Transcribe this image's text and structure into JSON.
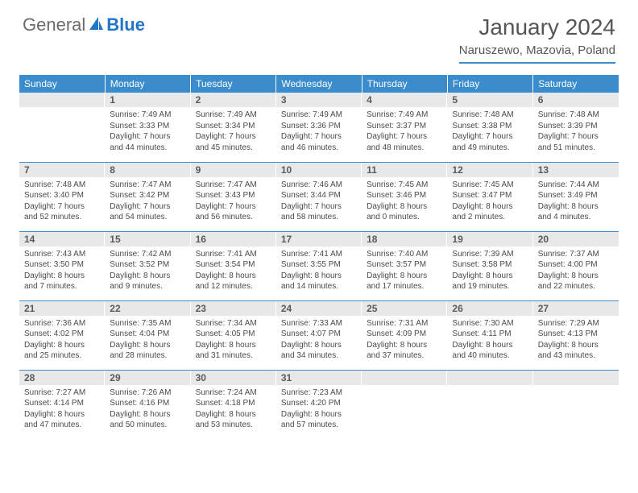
{
  "logo": {
    "text1": "General",
    "text2": "Blue"
  },
  "colors": {
    "header_bg": "#3a8ccc",
    "daynum_bg": "#e8e8e8",
    "text": "#4a4a4a",
    "logo_gray": "#6b6b6b",
    "logo_blue": "#2176c7",
    "border": "#3a8ccc"
  },
  "title": "January 2024",
  "location": "Naruszewo, Mazovia, Poland",
  "weekdays": [
    "Sunday",
    "Monday",
    "Tuesday",
    "Wednesday",
    "Thursday",
    "Friday",
    "Saturday"
  ],
  "weeks": [
    [
      {
        "n": "",
        "lines": []
      },
      {
        "n": "1",
        "lines": [
          "Sunrise: 7:49 AM",
          "Sunset: 3:33 PM",
          "Daylight: 7 hours",
          "and 44 minutes."
        ]
      },
      {
        "n": "2",
        "lines": [
          "Sunrise: 7:49 AM",
          "Sunset: 3:34 PM",
          "Daylight: 7 hours",
          "and 45 minutes."
        ]
      },
      {
        "n": "3",
        "lines": [
          "Sunrise: 7:49 AM",
          "Sunset: 3:36 PM",
          "Daylight: 7 hours",
          "and 46 minutes."
        ]
      },
      {
        "n": "4",
        "lines": [
          "Sunrise: 7:49 AM",
          "Sunset: 3:37 PM",
          "Daylight: 7 hours",
          "and 48 minutes."
        ]
      },
      {
        "n": "5",
        "lines": [
          "Sunrise: 7:48 AM",
          "Sunset: 3:38 PM",
          "Daylight: 7 hours",
          "and 49 minutes."
        ]
      },
      {
        "n": "6",
        "lines": [
          "Sunrise: 7:48 AM",
          "Sunset: 3:39 PM",
          "Daylight: 7 hours",
          "and 51 minutes."
        ]
      }
    ],
    [
      {
        "n": "7",
        "lines": [
          "Sunrise: 7:48 AM",
          "Sunset: 3:40 PM",
          "Daylight: 7 hours",
          "and 52 minutes."
        ]
      },
      {
        "n": "8",
        "lines": [
          "Sunrise: 7:47 AM",
          "Sunset: 3:42 PM",
          "Daylight: 7 hours",
          "and 54 minutes."
        ]
      },
      {
        "n": "9",
        "lines": [
          "Sunrise: 7:47 AM",
          "Sunset: 3:43 PM",
          "Daylight: 7 hours",
          "and 56 minutes."
        ]
      },
      {
        "n": "10",
        "lines": [
          "Sunrise: 7:46 AM",
          "Sunset: 3:44 PM",
          "Daylight: 7 hours",
          "and 58 minutes."
        ]
      },
      {
        "n": "11",
        "lines": [
          "Sunrise: 7:45 AM",
          "Sunset: 3:46 PM",
          "Daylight: 8 hours",
          "and 0 minutes."
        ]
      },
      {
        "n": "12",
        "lines": [
          "Sunrise: 7:45 AM",
          "Sunset: 3:47 PM",
          "Daylight: 8 hours",
          "and 2 minutes."
        ]
      },
      {
        "n": "13",
        "lines": [
          "Sunrise: 7:44 AM",
          "Sunset: 3:49 PM",
          "Daylight: 8 hours",
          "and 4 minutes."
        ]
      }
    ],
    [
      {
        "n": "14",
        "lines": [
          "Sunrise: 7:43 AM",
          "Sunset: 3:50 PM",
          "Daylight: 8 hours",
          "and 7 minutes."
        ]
      },
      {
        "n": "15",
        "lines": [
          "Sunrise: 7:42 AM",
          "Sunset: 3:52 PM",
          "Daylight: 8 hours",
          "and 9 minutes."
        ]
      },
      {
        "n": "16",
        "lines": [
          "Sunrise: 7:41 AM",
          "Sunset: 3:54 PM",
          "Daylight: 8 hours",
          "and 12 minutes."
        ]
      },
      {
        "n": "17",
        "lines": [
          "Sunrise: 7:41 AM",
          "Sunset: 3:55 PM",
          "Daylight: 8 hours",
          "and 14 minutes."
        ]
      },
      {
        "n": "18",
        "lines": [
          "Sunrise: 7:40 AM",
          "Sunset: 3:57 PM",
          "Daylight: 8 hours",
          "and 17 minutes."
        ]
      },
      {
        "n": "19",
        "lines": [
          "Sunrise: 7:39 AM",
          "Sunset: 3:58 PM",
          "Daylight: 8 hours",
          "and 19 minutes."
        ]
      },
      {
        "n": "20",
        "lines": [
          "Sunrise: 7:37 AM",
          "Sunset: 4:00 PM",
          "Daylight: 8 hours",
          "and 22 minutes."
        ]
      }
    ],
    [
      {
        "n": "21",
        "lines": [
          "Sunrise: 7:36 AM",
          "Sunset: 4:02 PM",
          "Daylight: 8 hours",
          "and 25 minutes."
        ]
      },
      {
        "n": "22",
        "lines": [
          "Sunrise: 7:35 AM",
          "Sunset: 4:04 PM",
          "Daylight: 8 hours",
          "and 28 minutes."
        ]
      },
      {
        "n": "23",
        "lines": [
          "Sunrise: 7:34 AM",
          "Sunset: 4:05 PM",
          "Daylight: 8 hours",
          "and 31 minutes."
        ]
      },
      {
        "n": "24",
        "lines": [
          "Sunrise: 7:33 AM",
          "Sunset: 4:07 PM",
          "Daylight: 8 hours",
          "and 34 minutes."
        ]
      },
      {
        "n": "25",
        "lines": [
          "Sunrise: 7:31 AM",
          "Sunset: 4:09 PM",
          "Daylight: 8 hours",
          "and 37 minutes."
        ]
      },
      {
        "n": "26",
        "lines": [
          "Sunrise: 7:30 AM",
          "Sunset: 4:11 PM",
          "Daylight: 8 hours",
          "and 40 minutes."
        ]
      },
      {
        "n": "27",
        "lines": [
          "Sunrise: 7:29 AM",
          "Sunset: 4:13 PM",
          "Daylight: 8 hours",
          "and 43 minutes."
        ]
      }
    ],
    [
      {
        "n": "28",
        "lines": [
          "Sunrise: 7:27 AM",
          "Sunset: 4:14 PM",
          "Daylight: 8 hours",
          "and 47 minutes."
        ]
      },
      {
        "n": "29",
        "lines": [
          "Sunrise: 7:26 AM",
          "Sunset: 4:16 PM",
          "Daylight: 8 hours",
          "and 50 minutes."
        ]
      },
      {
        "n": "30",
        "lines": [
          "Sunrise: 7:24 AM",
          "Sunset: 4:18 PM",
          "Daylight: 8 hours",
          "and 53 minutes."
        ]
      },
      {
        "n": "31",
        "lines": [
          "Sunrise: 7:23 AM",
          "Sunset: 4:20 PM",
          "Daylight: 8 hours",
          "and 57 minutes."
        ]
      },
      {
        "n": "",
        "lines": []
      },
      {
        "n": "",
        "lines": []
      },
      {
        "n": "",
        "lines": []
      }
    ]
  ]
}
